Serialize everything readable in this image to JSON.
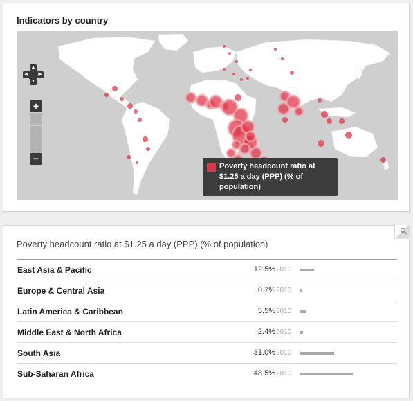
{
  "map_panel": {
    "title": "Indicators by country",
    "legend_label": "Poverty headcount ratio at $1.25 a day (PPP) (% of population)",
    "legend_color": "#d83a4a",
    "map_background": "#cfcfcf",
    "land_color": "#ffffff",
    "bubble_color": "#e0374a",
    "controls": {
      "zoom_in": "+",
      "zoom_out": "−"
    }
  },
  "table_panel": {
    "title": "Poverty headcount ratio at $1.25 a day (PPP) (% of population)",
    "rows": [
      {
        "region": "East Asia & Pacific",
        "value": "12.5%",
        "year": "2010",
        "pct": 12.5
      },
      {
        "region": "Europe & Central Asia",
        "value": "0.7%",
        "year": "2010",
        "pct": 0.7
      },
      {
        "region": "Latin America & Caribbean",
        "value": "5.5%",
        "year": "2010",
        "pct": 5.5
      },
      {
        "region": "Middle East & North Africa",
        "value": "2.4%",
        "year": "2010",
        "pct": 2.4
      },
      {
        "region": "South Asia",
        "value": "31.0%",
        "year": "2010",
        "pct": 31.0
      },
      {
        "region": "Sub-Saharan Africa",
        "value": "48.5%",
        "year": "2010",
        "pct": 48.5
      }
    ],
    "bar_color": "#a9a9a5"
  }
}
